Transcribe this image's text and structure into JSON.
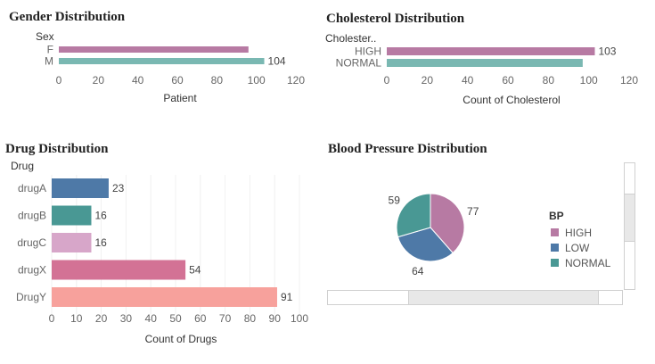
{
  "colors": {
    "pink": "#b77aa3",
    "teal": "#7ab8b2",
    "drug_blue": "#4e79a7",
    "drug_teal": "#499894",
    "drug_lightpink": "#d7a6c9",
    "drug_magenta": "#d37295",
    "drug_salmon": "#f7a19c",
    "bp_high": "#b77aa3",
    "bp_low": "#4e79a7",
    "bp_normal": "#499894"
  },
  "chart_data": [
    {
      "id": "gender",
      "type": "bar",
      "orientation": "horizontal",
      "title": "Gender Distribution",
      "field_label": "Sex",
      "xlabel": "Patient",
      "categories": [
        "F",
        "M"
      ],
      "values": [
        96,
        104
      ],
      "data_labels": [
        "",
        "104"
      ],
      "ticks": [
        "0",
        "20",
        "40",
        "60",
        "80",
        "100",
        "120"
      ],
      "xlim": [
        0,
        120
      ]
    },
    {
      "id": "cholesterol",
      "type": "bar",
      "orientation": "horizontal",
      "title": "Cholesterol Distribution",
      "field_label": "Cholester..",
      "xlabel": "Count of Cholesterol",
      "categories": [
        "HIGH",
        "NORMAL"
      ],
      "values": [
        103,
        97
      ],
      "data_labels": [
        "103",
        ""
      ],
      "ticks": [
        "0",
        "20",
        "40",
        "60",
        "80",
        "100",
        "120"
      ],
      "xlim": [
        0,
        120
      ]
    },
    {
      "id": "drug",
      "type": "bar",
      "orientation": "horizontal",
      "title": "Drug Distribution",
      "field_label": "Drug",
      "xlabel": "Count of Drugs",
      "categories": [
        "drugA",
        "drugB",
        "drugC",
        "drugX",
        "DrugY"
      ],
      "values": [
        23,
        16,
        16,
        54,
        91
      ],
      "data_labels": [
        "23",
        "16",
        "16",
        "54",
        "91"
      ],
      "ticks": [
        "0",
        "10",
        "20",
        "30",
        "40",
        "50",
        "60",
        "70",
        "80",
        "90",
        "100"
      ],
      "xlim": [
        0,
        100
      ]
    },
    {
      "id": "bp",
      "type": "pie",
      "title": "Blood Pressure Distribution",
      "legend_title": "BP",
      "legend_placement": "right",
      "categories": [
        "HIGH",
        "LOW",
        "NORMAL"
      ],
      "values": [
        77,
        64,
        59
      ],
      "data_labels": [
        "77",
        "64",
        "59"
      ]
    }
  ]
}
